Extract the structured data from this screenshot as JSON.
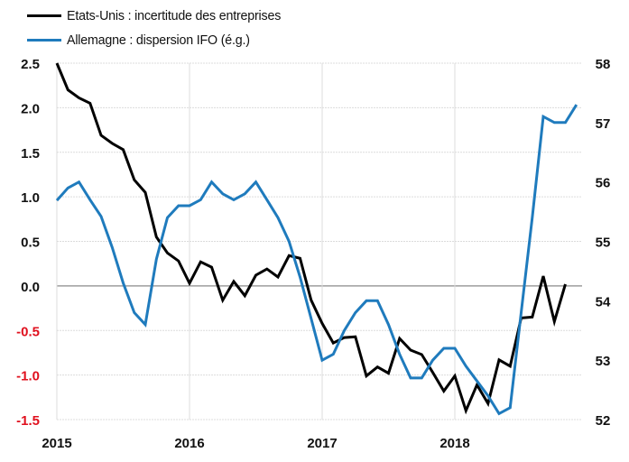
{
  "chart_data": {
    "type": "line",
    "title": "",
    "x_labels": [
      "2015",
      "2016",
      "2017",
      "2018"
    ],
    "x_start": "2015-01",
    "frequency": "monthly",
    "left_axis": {
      "ylim": [
        -1.5,
        2.5
      ],
      "ticks": [
        "2.5",
        "2.0",
        "1.5",
        "1.0",
        "0.5",
        "0.0",
        "-0.5",
        "-1.0",
        "-1.5"
      ],
      "tick_values": [
        2.5,
        2.0,
        1.5,
        1.0,
        0.5,
        0.0,
        -0.5,
        -1.0,
        -1.5
      ]
    },
    "right_axis": {
      "ylim": [
        52,
        58
      ],
      "ticks": [
        "58",
        "57",
        "56",
        "55",
        "54",
        "53",
        "52"
      ],
      "tick_values": [
        58,
        57,
        56,
        55,
        54,
        53,
        52
      ]
    },
    "grid": true,
    "legend_position": "top-left",
    "series": [
      {
        "name": "Etats-Unis : incertitude des entreprises",
        "axis": "left",
        "color": "#000000",
        "values": [
          2.5,
          2.2,
          2.11,
          2.05,
          1.69,
          1.6,
          1.53,
          1.19,
          1.05,
          0.55,
          0.37,
          0.28,
          0.03,
          0.27,
          0.21,
          -0.16,
          0.05,
          -0.11,
          0.12,
          0.19,
          0.1,
          0.34,
          0.31,
          -0.16,
          -0.42,
          -0.64,
          -0.58,
          -0.57,
          -1.01,
          -0.91,
          -0.98,
          -0.59,
          -0.72,
          -0.77,
          -0.97,
          -1.18,
          -1.01,
          -1.4,
          -1.11,
          -1.32,
          -0.83,
          -0.9,
          -0.36,
          -0.35,
          0.11,
          -0.4,
          0.02
        ]
      },
      {
        "name": "Allemagne : dispersion IFO (é.g.)",
        "axis": "right",
        "color": "#1f7bbd",
        "values": [
          55.69,
          55.9,
          56.0,
          55.7,
          55.42,
          54.9,
          54.3,
          53.8,
          53.6,
          54.7,
          55.4,
          55.6,
          55.6,
          55.7,
          56.0,
          55.8,
          55.7,
          55.8,
          56.0,
          55.7,
          55.4,
          55.0,
          54.4,
          53.7,
          53.0,
          53.1,
          53.5,
          53.8,
          54.0,
          54.0,
          53.6,
          53.1,
          52.7,
          52.7,
          53.0,
          53.2,
          53.2,
          52.9,
          52.65,
          52.4,
          52.1,
          52.2,
          53.8,
          55.4,
          57.1,
          57.0,
          57.0,
          57.3
        ]
      }
    ],
    "negative_tick_color": "#e0101e"
  }
}
